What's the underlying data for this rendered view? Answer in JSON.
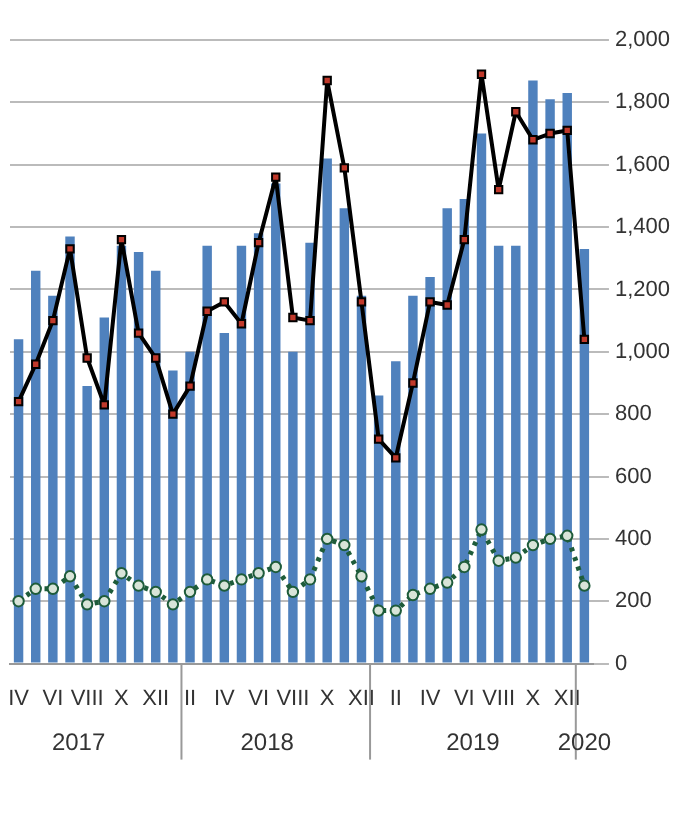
{
  "chart_data": {
    "type": "bar",
    "categories": [
      "IV",
      null,
      "VI",
      null,
      "VIII",
      null,
      "X",
      null,
      "XII",
      null,
      "II",
      null,
      "IV",
      null,
      "VI",
      null,
      "VIII",
      null,
      "X",
      null,
      "XII",
      null,
      "II",
      null,
      "IV",
      null,
      "VI",
      null,
      "VIII",
      null,
      "X",
      null,
      "XII",
      null
    ],
    "series": [
      {
        "color": "#4f81bd",
        "values": [
          1040,
          1260,
          1180,
          1370,
          890,
          1110,
          1340,
          1320,
          1260,
          940,
          1000,
          1340,
          1060,
          1340,
          1380,
          1540,
          1000,
          1350,
          1620,
          1460,
          1180,
          860,
          970,
          1180,
          1240,
          1460,
          1490,
          1700,
          1340,
          1340,
          1870,
          1810,
          1830,
          1330
        ]
      },
      {
        "type": "line",
        "color": "#000000",
        "marker": "square",
        "line_style": "solid",
        "values": [
          840,
          960,
          1100,
          1330,
          980,
          830,
          1360,
          1060,
          980,
          800,
          890,
          1130,
          1160,
          1090,
          1350,
          1560,
          1110,
          1100,
          1870,
          1590,
          1160,
          720,
          660,
          900,
          1160,
          1150,
          1360,
          1890,
          1520,
          1770,
          1680,
          1700,
          1710,
          1040
        ]
      },
      {
        "type": "line",
        "color": "#1e5c3a",
        "marker": "circle",
        "line_style": "dotted",
        "values": [
          200,
          240,
          240,
          280,
          190,
          200,
          290,
          250,
          230,
          190,
          230,
          270,
          250,
          270,
          290,
          310,
          230,
          270,
          400,
          380,
          280,
          170,
          170,
          220,
          240,
          260,
          310,
          430,
          330,
          340,
          380,
          400,
          410,
          250
        ]
      }
    ],
    "ylim": [
      0,
      2000
    ],
    "yticks": [
      0,
      200,
      400,
      600,
      800,
      {
        "value": 1000,
        "label": "1,000"
      },
      {
        "value": 1200,
        "label": "1,200"
      },
      {
        "value": 1400,
        "label": "1,400"
      },
      {
        "value": 1600,
        "label": "1,600"
      },
      {
        "value": 1800,
        "label": "1,800"
      },
      {
        "value": 2000,
        "label": "2,000"
      }
    ],
    "grid": "y",
    "annotations": [
      "2017",
      "2018",
      "2019",
      "2020"
    ]
  }
}
